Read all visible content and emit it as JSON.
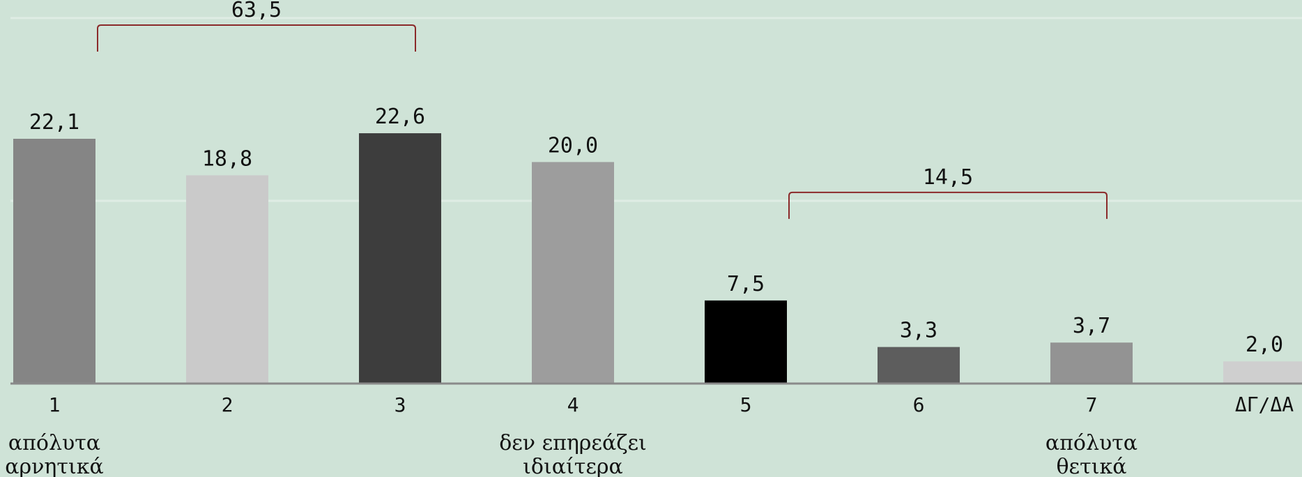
{
  "chart_data": {
    "type": "bar",
    "categories": [
      "1",
      "2",
      "3",
      "4",
      "5",
      "6",
      "7",
      "ΔΓ/ΔΑ"
    ],
    "values": [
      22.1,
      18.8,
      22.6,
      20.0,
      7.5,
      3.3,
      3.7,
      2.0
    ],
    "value_labels": [
      "22,1",
      "18,8",
      "22,6",
      "20,0",
      "7,5",
      "3,3",
      "3,7",
      "2,0"
    ],
    "colors": [
      "#858585",
      "#cacaca",
      "#3d3d3d",
      "#9d9d9d",
      "#000000",
      "#5d5d5d",
      "#939393",
      "#cfcfcf"
    ],
    "ylim": [
      0,
      34
    ],
    "grid": true,
    "legend": "none",
    "scale_labels": [
      {
        "category_index": 0,
        "lines": [
          "απόλυτα",
          "αρνητικά"
        ]
      },
      {
        "category_index": 3,
        "lines": [
          "δεν επηρεάζει",
          "ιδιαίτερα"
        ]
      },
      {
        "category_index": 6,
        "lines": [
          "απόλυτα",
          "θετικά"
        ]
      }
    ],
    "brackets": [
      {
        "from_index": 0,
        "to_index": 2,
        "label": "63,5"
      },
      {
        "from_index": 4,
        "to_index": 6,
        "label": "14,5"
      }
    ],
    "grid_values": [
      16.5,
      33
    ]
  }
}
